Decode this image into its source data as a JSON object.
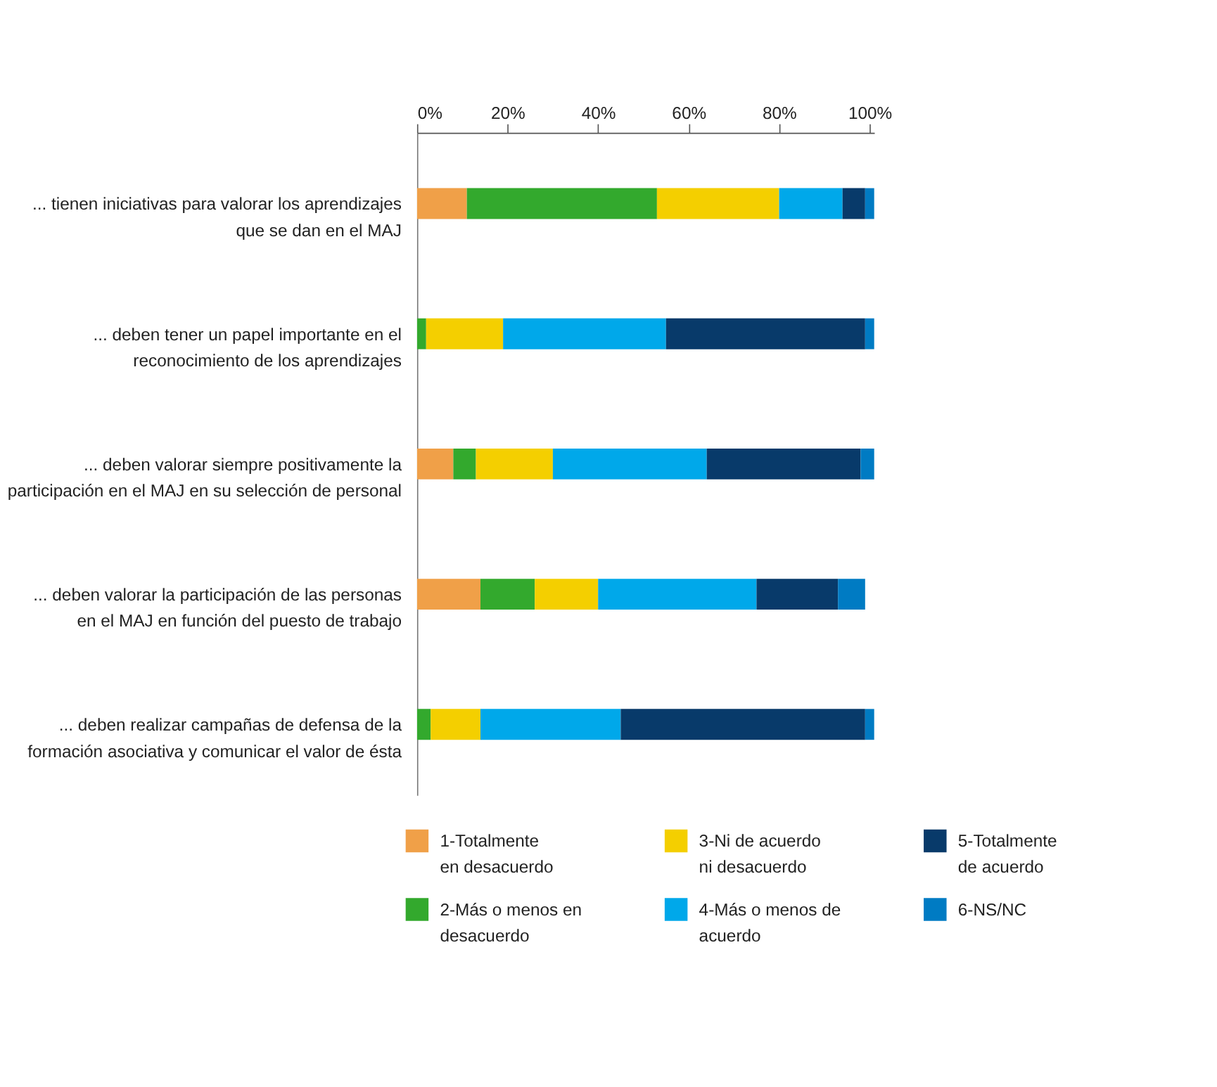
{
  "chart_data": {
    "type": "bar",
    "orientation": "horizontal",
    "stacked": true,
    "legend": "bottom",
    "grid": false,
    "categories": [
      "... tienen iniciativas para valorar los aprendizajes\nque se dan en el MAJ",
      "... deben tener un papel importante en el\nreconocimiento de los aprendizajes",
      "... deben valorar siempre positivamente la\nparticipación en el MAJ en su selección de personal",
      "... deben valorar la participación de las personas\nen el MAJ en función del puesto de trabajo",
      "... deben realizar campañas de defensa de la\nformación asociativa y comunicar el valor de ésta"
    ],
    "xlim": [
      0,
      101
    ],
    "xticks": [
      {
        "value": 0,
        "label": "0%"
      },
      {
        "value": 20,
        "label": "20%"
      },
      {
        "value": 40,
        "label": "40%"
      },
      {
        "value": 60,
        "label": "60%"
      },
      {
        "value": 80,
        "label": "80%"
      },
      {
        "value": 100,
        "label": "100%"
      }
    ],
    "series": [
      {
        "name": "1-Totalmente\nen desacuerdo",
        "color": "#f0a048",
        "values": [
          11,
          0,
          8,
          14,
          0
        ]
      },
      {
        "name": "2-Más o menos en\ndesacuerdo",
        "color": "#33a92d",
        "values": [
          42,
          2,
          5,
          12,
          3
        ]
      },
      {
        "name": "3-Ni de acuerdo\nni desacuerdo",
        "color": "#f4cf00",
        "values": [
          27,
          17,
          17,
          14,
          11
        ]
      },
      {
        "name": "4-Más o menos de\nacuerdo",
        "color": "#00a8ea",
        "values": [
          14,
          36,
          34,
          35,
          31
        ]
      },
      {
        "name": "5-Totalmente\nde acuerdo",
        "color": "#083a6a",
        "values": [
          5,
          44,
          34,
          18,
          54
        ]
      },
      {
        "name": "6-NS/NC",
        "color": "#007bc3",
        "values": [
          2,
          2,
          3,
          6,
          2
        ]
      }
    ]
  }
}
